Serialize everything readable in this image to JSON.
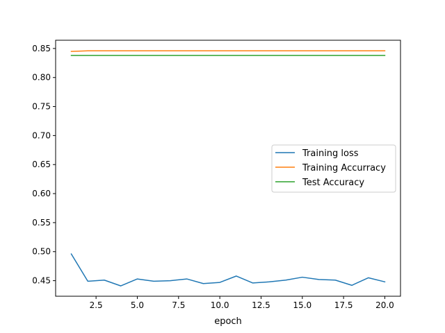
{
  "chart_data": {
    "type": "line",
    "title": "",
    "xlabel": "epoch",
    "ylabel": "",
    "xlim": [
      0.05,
      20.95
    ],
    "ylim": [
      0.4232,
      0.8642
    ],
    "xticks": [
      2.5,
      5.0,
      7.5,
      10.0,
      12.5,
      15.0,
      17.5,
      20.0
    ],
    "xtick_labels": [
      "2.5",
      "5.0",
      "7.5",
      "10.0",
      "12.5",
      "15.0",
      "17.5",
      "20.0"
    ],
    "yticks": [
      0.45,
      0.5,
      0.55,
      0.6,
      0.65,
      0.7,
      0.75,
      0.8,
      0.85
    ],
    "ytick_labels": [
      "0.45",
      "0.50",
      "0.55",
      "0.60",
      "0.65",
      "0.70",
      "0.75",
      "0.80",
      "0.85"
    ],
    "grid": false,
    "legend_position": "center-right",
    "x": [
      1,
      2,
      3,
      4,
      5,
      6,
      7,
      8,
      9,
      10,
      11,
      12,
      13,
      14,
      15,
      16,
      17,
      18,
      19,
      20
    ],
    "series": [
      {
        "name": "Training loss",
        "color": "#1f77b4",
        "values": [
          0.496,
          0.449,
          0.451,
          0.441,
          0.453,
          0.449,
          0.45,
          0.453,
          0.445,
          0.447,
          0.458,
          0.446,
          0.448,
          0.451,
          0.456,
          0.452,
          0.451,
          0.442,
          0.455,
          0.448
        ]
      },
      {
        "name": "Training Accurracy",
        "color": "#ff7f0e",
        "values": [
          0.845,
          0.846,
          0.846,
          0.846,
          0.846,
          0.846,
          0.846,
          0.846,
          0.846,
          0.846,
          0.846,
          0.846,
          0.846,
          0.846,
          0.846,
          0.846,
          0.846,
          0.846,
          0.846,
          0.846
        ]
      },
      {
        "name": "Test Accuracy",
        "color": "#2ca02c",
        "values": [
          0.838,
          0.838,
          0.838,
          0.838,
          0.838,
          0.838,
          0.838,
          0.838,
          0.838,
          0.838,
          0.838,
          0.838,
          0.838,
          0.838,
          0.838,
          0.838,
          0.838,
          0.838,
          0.838,
          0.838
        ]
      }
    ]
  }
}
